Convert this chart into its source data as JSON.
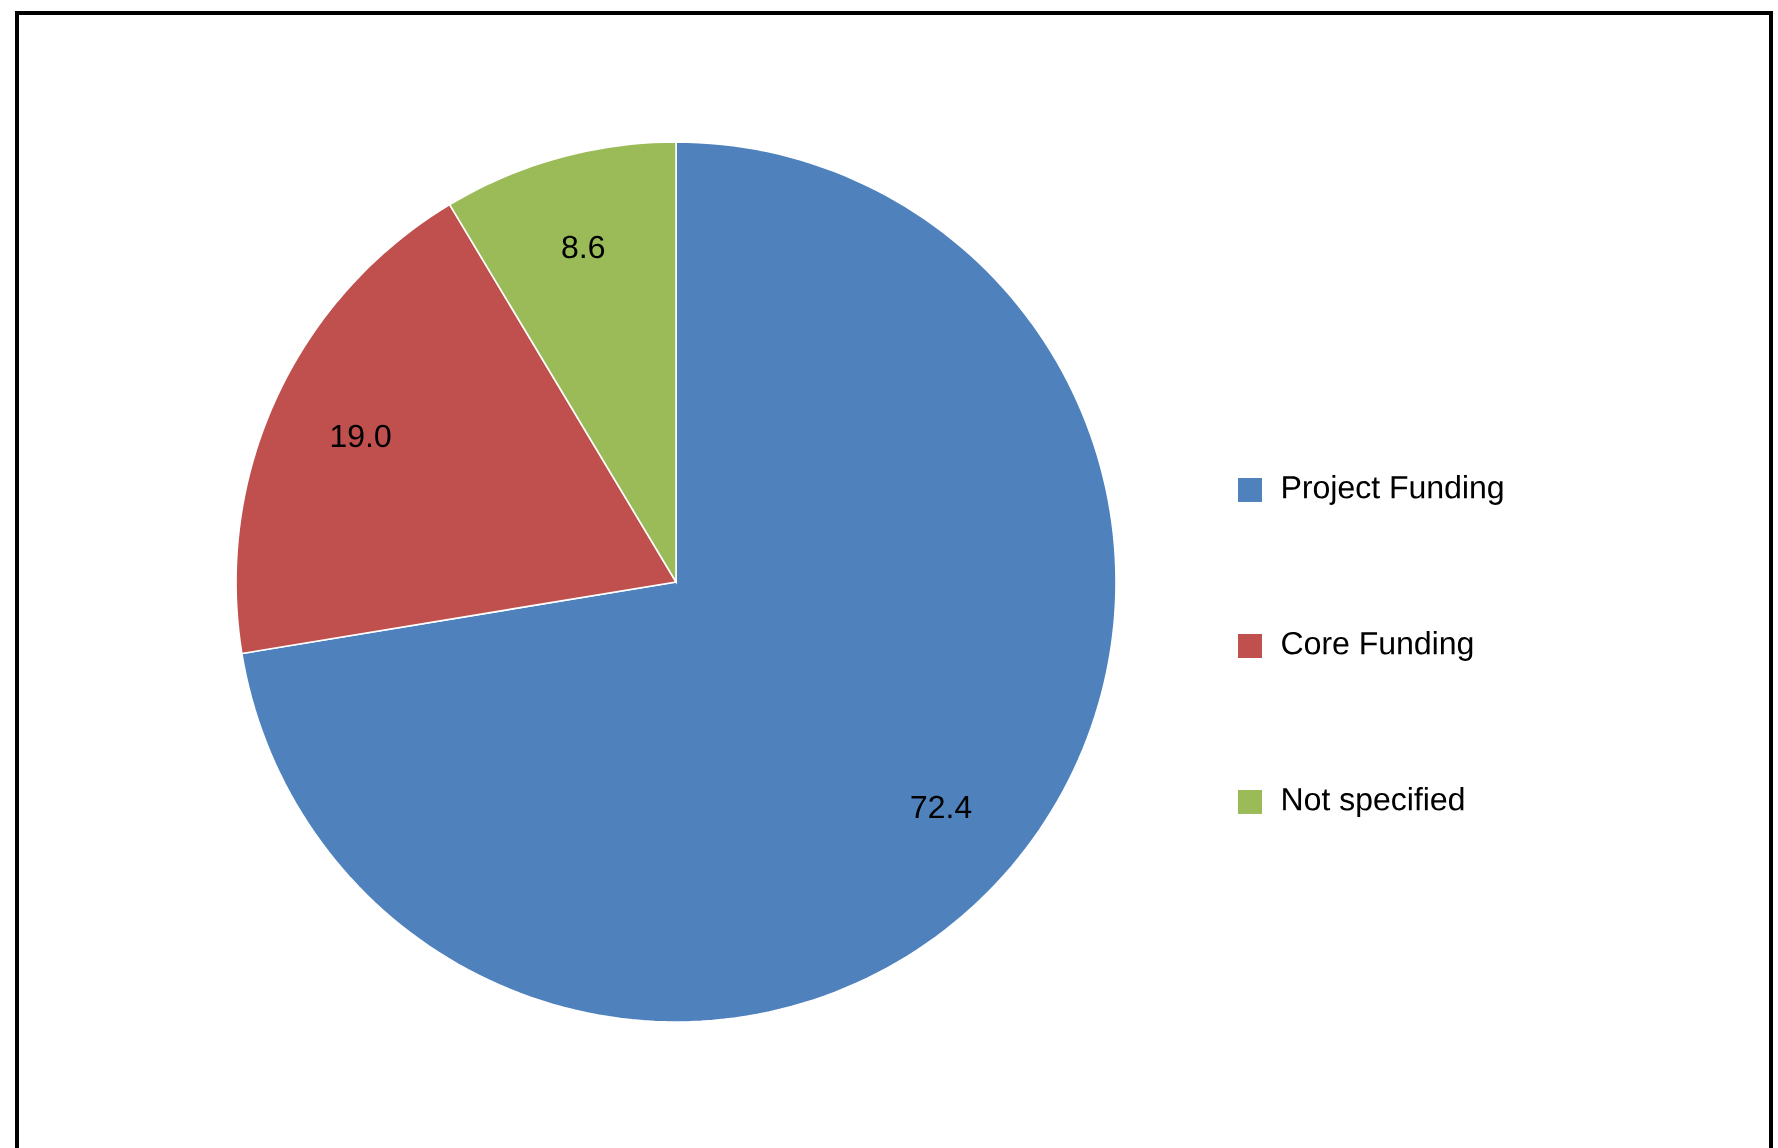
{
  "chart_data": {
    "type": "pie",
    "categories": [
      "Project Funding",
      "Core Funding",
      "Not specified"
    ],
    "values": [
      72.4,
      19.0,
      8.6
    ],
    "value_labels": [
      "72.4",
      "19.0",
      "8.6"
    ],
    "colors": [
      "#4f81bd",
      "#c0504d",
      "#9bbb59"
    ],
    "legend": "right"
  }
}
